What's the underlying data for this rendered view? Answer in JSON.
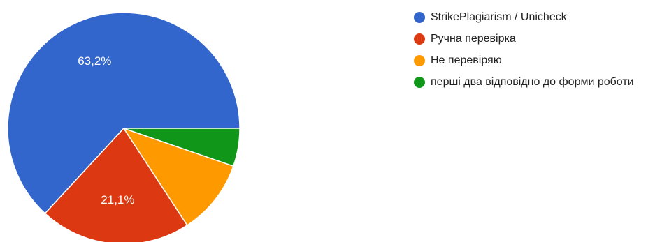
{
  "chart_data": {
    "type": "pie",
    "categories": [
      "StrikePlagiarism / Unicheck",
      "Ручна перевірка",
      "Не перевіряю",
      "перші два відповідно до форми роботи"
    ],
    "values": [
      63.2,
      21.1,
      10.5,
      5.3
    ],
    "slice_labels": [
      "63,2%",
      "21,1%",
      "",
      ""
    ],
    "colors": [
      "#3366cc",
      "#dc3912",
      "#ff9900",
      "#109618"
    ],
    "start": "3 o'clock, counter-clockwise",
    "legend_position": "right"
  }
}
